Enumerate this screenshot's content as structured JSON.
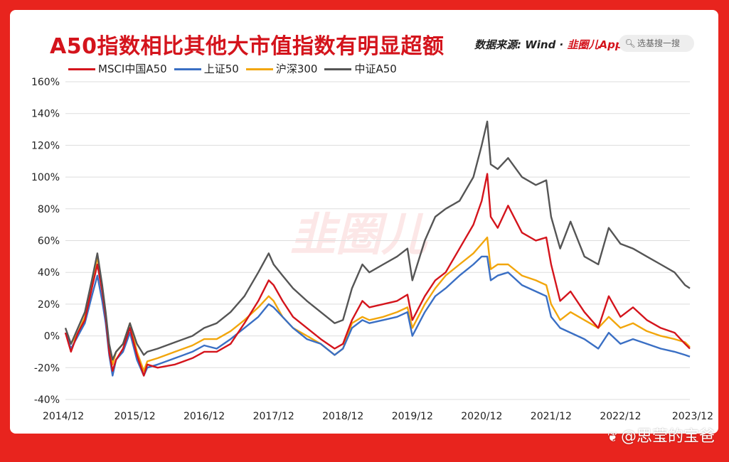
{
  "header": {
    "title": "A50指数相比其他大市值指数有明显超额",
    "source_prefix": "数据来源: Wind · ",
    "source_brand": "韭圈儿App",
    "search_placeholder": "选基搜一搜",
    "search_icon": "magnifier-icon"
  },
  "center_watermark": "韭圈儿",
  "footer_watermark": "@思莹的宝爸",
  "chart_data": {
    "type": "line",
    "title": "A50指数相比其他大市值指数有明显超额",
    "xlabel": "",
    "ylabel": "",
    "x_ticks": [
      "2014/12",
      "2015/12",
      "2016/12",
      "2017/12",
      "2018/12",
      "2019/12",
      "2020/12",
      "2021/12",
      "2022/12",
      "2023/12"
    ],
    "y_ticks": [
      "160%",
      "140%",
      "120%",
      "100%",
      "80%",
      "60%",
      "40%",
      "20%",
      "0%",
      "-20%",
      "-40%"
    ],
    "ylim": [
      -40,
      160
    ],
    "grid": "horizontal",
    "legend_position": "top-left",
    "x": [
      2014.92,
      2015.0,
      2015.1,
      2015.2,
      2015.3,
      2015.38,
      2015.45,
      2015.5,
      2015.55,
      2015.6,
      2015.65,
      2015.75,
      2015.85,
      2015.95,
      2016.05,
      2016.1,
      2016.25,
      2016.5,
      2016.75,
      2016.92,
      2017.1,
      2017.3,
      2017.5,
      2017.7,
      2017.85,
      2017.92,
      2018.05,
      2018.2,
      2018.4,
      2018.6,
      2018.8,
      2018.92,
      2019.05,
      2019.2,
      2019.3,
      2019.5,
      2019.7,
      2019.85,
      2019.92,
      2020.1,
      2020.25,
      2020.4,
      2020.6,
      2020.8,
      2020.92,
      2021.0,
      2021.05,
      2021.15,
      2021.3,
      2021.5,
      2021.7,
      2021.85,
      2021.92,
      2022.05,
      2022.2,
      2022.4,
      2022.6,
      2022.75,
      2022.92,
      2023.1,
      2023.3,
      2023.5,
      2023.7,
      2023.85,
      2023.92
    ],
    "series": [
      {
        "name": "MSCI中国A50",
        "color": "#d4141c",
        "values": [
          2,
          -10,
          2,
          10,
          30,
          45,
          28,
          12,
          -10,
          -22,
          -15,
          -8,
          5,
          -12,
          -25,
          -18,
          -20,
          -18,
          -14,
          -10,
          -10,
          -5,
          8,
          22,
          35,
          32,
          22,
          12,
          5,
          -2,
          -8,
          -5,
          10,
          22,
          18,
          20,
          22,
          26,
          10,
          25,
          35,
          40,
          55,
          70,
          85,
          102,
          75,
          68,
          82,
          65,
          60,
          62,
          45,
          22,
          28,
          15,
          5,
          25,
          12,
          18,
          10,
          5,
          2,
          -5,
          -8
        ]
      },
      {
        "name": "上证50",
        "color": "#3a6fc4",
        "values": [
          2,
          -8,
          0,
          8,
          25,
          38,
          22,
          8,
          -12,
          -25,
          -15,
          -10,
          2,
          -15,
          -25,
          -20,
          -18,
          -14,
          -10,
          -6,
          -8,
          -2,
          5,
          12,
          20,
          18,
          12,
          5,
          -2,
          -5,
          -12,
          -8,
          5,
          10,
          8,
          10,
          12,
          15,
          0,
          15,
          25,
          30,
          38,
          45,
          50,
          50,
          35,
          38,
          40,
          32,
          28,
          25,
          12,
          5,
          2,
          -2,
          -8,
          2,
          -5,
          -2,
          -5,
          -8,
          -10,
          -12,
          -13
        ]
      },
      {
        "name": "沪深300",
        "color": "#f2a60c",
        "values": [
          2,
          -5,
          2,
          12,
          30,
          50,
          30,
          12,
          -8,
          -18,
          -10,
          -5,
          8,
          -10,
          -22,
          -16,
          -14,
          -10,
          -6,
          -2,
          -2,
          3,
          10,
          18,
          25,
          22,
          12,
          5,
          0,
          -5,
          -12,
          -8,
          8,
          12,
          10,
          12,
          15,
          18,
          5,
          20,
          30,
          38,
          45,
          52,
          58,
          62,
          42,
          45,
          45,
          38,
          35,
          32,
          20,
          10,
          15,
          10,
          5,
          12,
          5,
          8,
          3,
          0,
          -2,
          -4,
          -7
        ]
      },
      {
        "name": "中证A50",
        "color": "#555555",
        "values": [
          5,
          -5,
          5,
          15,
          35,
          52,
          32,
          15,
          -5,
          -15,
          -10,
          -5,
          8,
          -5,
          -12,
          -10,
          -8,
          -4,
          0,
          5,
          8,
          15,
          25,
          40,
          52,
          45,
          38,
          30,
          22,
          15,
          8,
          10,
          30,
          45,
          40,
          45,
          50,
          55,
          35,
          60,
          75,
          80,
          85,
          100,
          120,
          135,
          108,
          105,
          112,
          100,
          95,
          98,
          75,
          55,
          72,
          50,
          45,
          68,
          58,
          55,
          50,
          45,
          40,
          32,
          30
        ]
      }
    ]
  }
}
